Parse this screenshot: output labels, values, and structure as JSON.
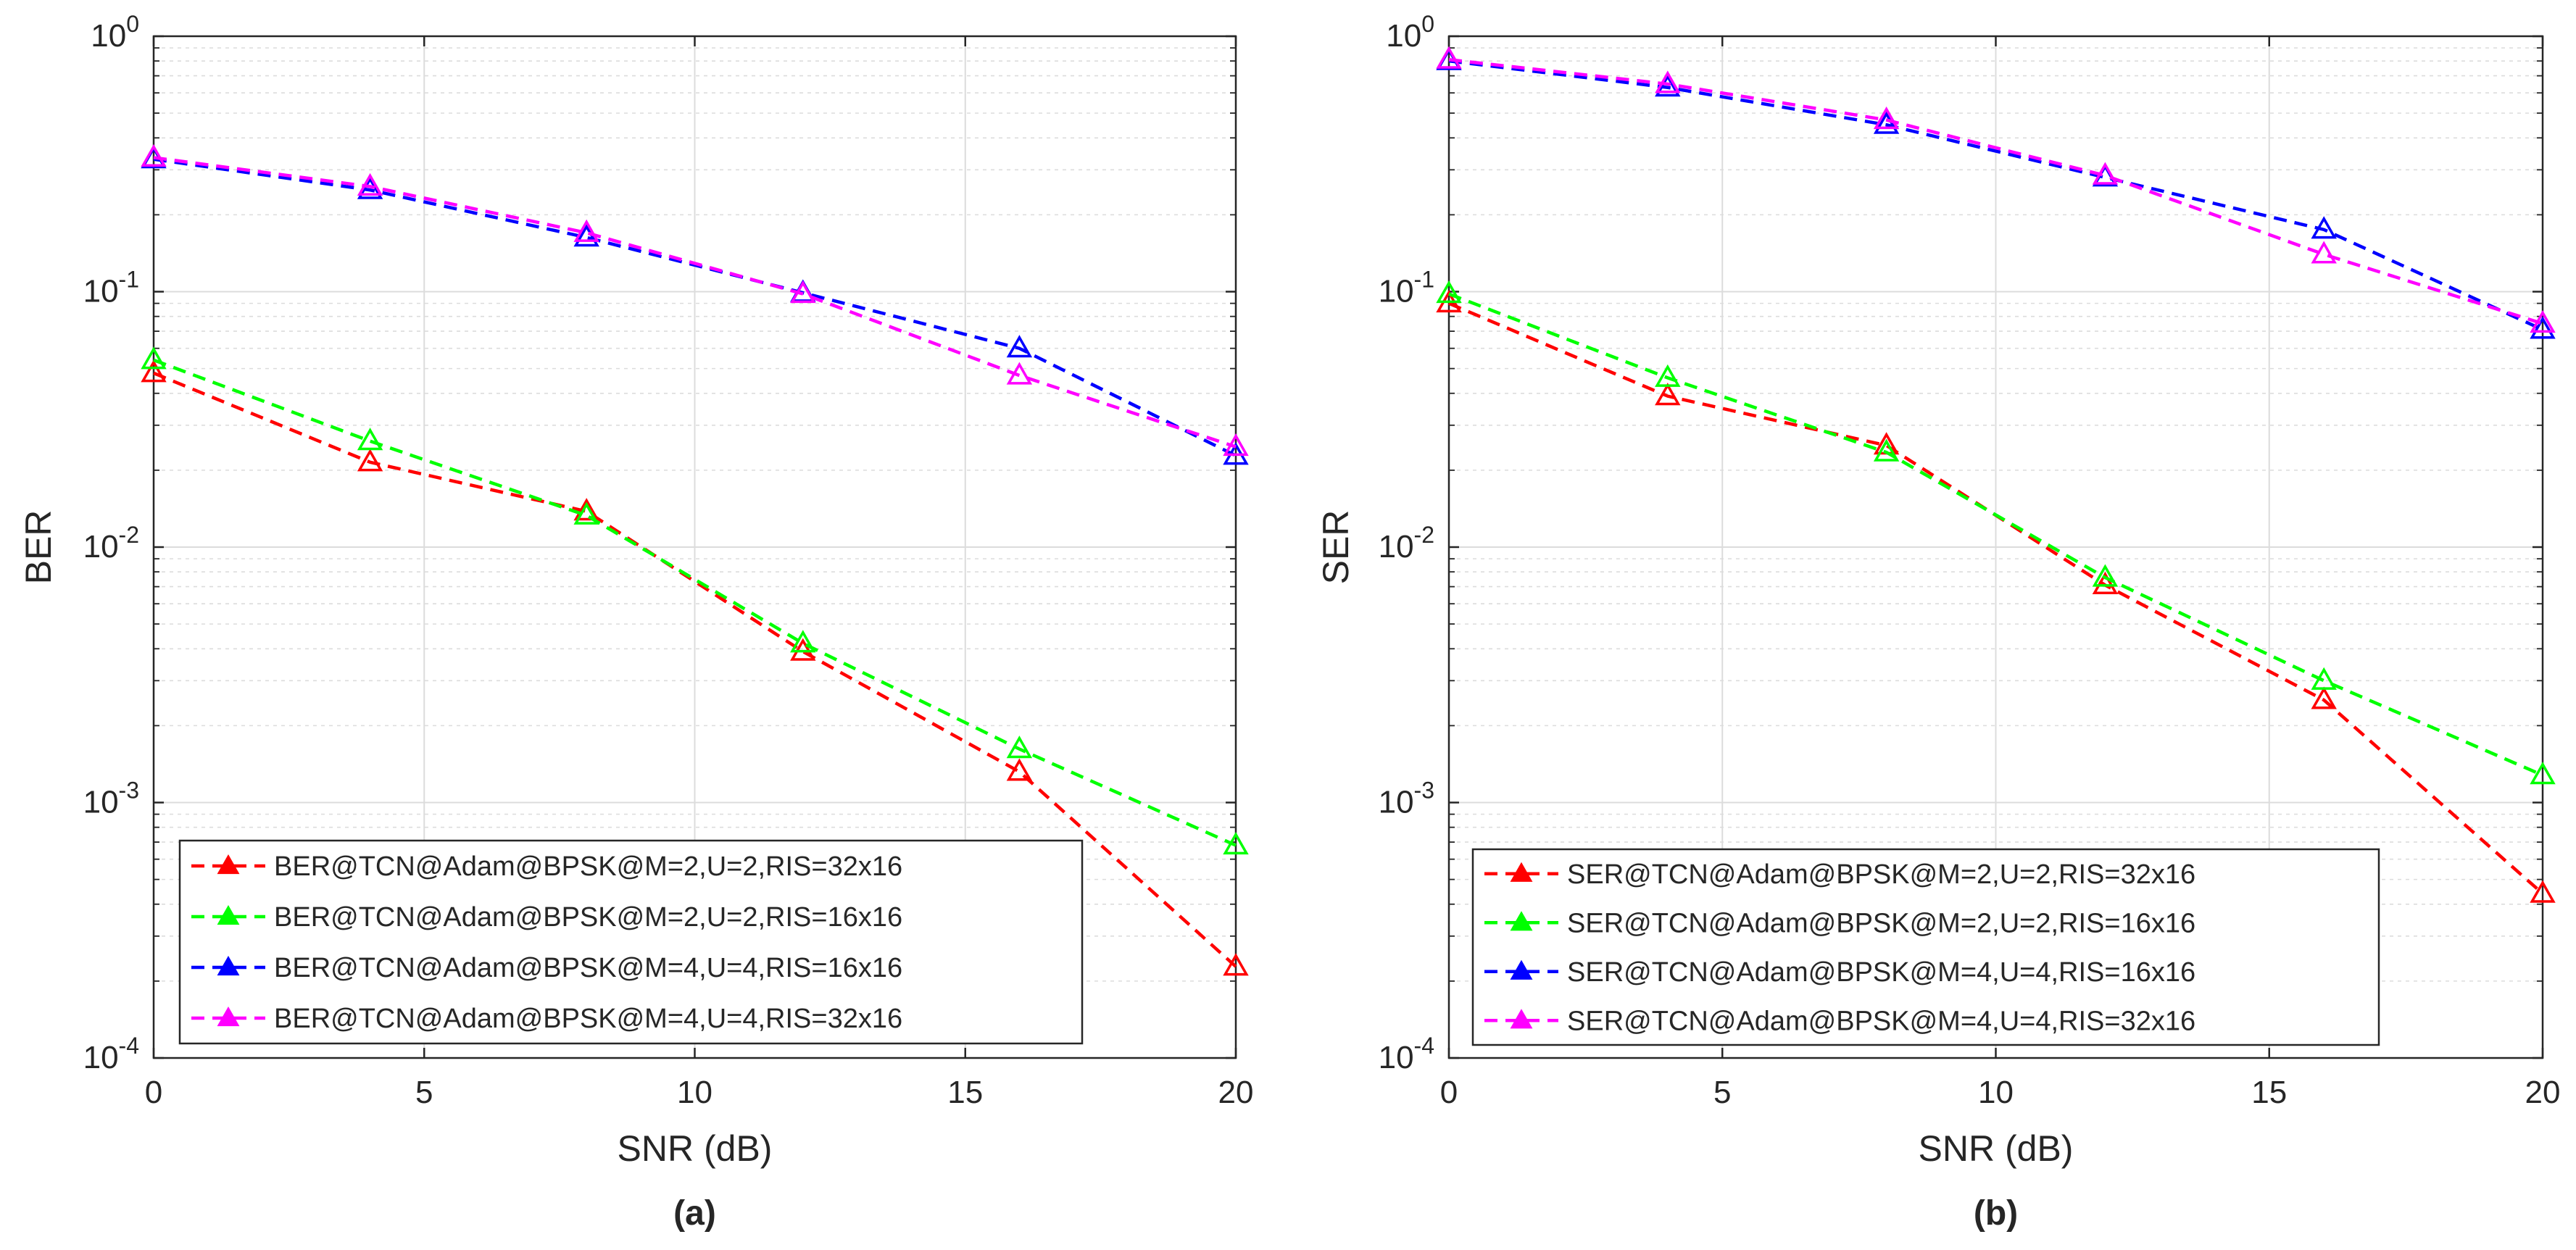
{
  "chart_data": [
    {
      "type": "line",
      "panel_label": "(a)",
      "title": "",
      "xlabel": "SNR (dB)",
      "ylabel": "BER",
      "yscale": "log",
      "xlim": [
        0,
        20
      ],
      "ylim": [
        0.0001,
        1
      ],
      "x_ticks": [
        "0",
        "5",
        "10",
        "15",
        "20"
      ],
      "y_ticks": [
        {
          "base": "10",
          "exp": "-4"
        },
        {
          "base": "10",
          "exp": "-3"
        },
        {
          "base": "10",
          "exp": "-2"
        },
        {
          "base": "10",
          "exp": "-1"
        },
        {
          "base": "10",
          "exp": "0"
        }
      ],
      "grid": true,
      "legend_position": "bottom-left",
      "x": [
        0,
        4,
        8,
        12,
        16,
        20
      ],
      "series": [
        {
          "name": "BER@TCN@Adam@BPSK@M=2,U=2,RIS=32x16",
          "color": "#ff0000",
          "values": [
            0.048,
            0.0215,
            0.0138,
            0.0039,
            0.00132,
            0.000228
          ]
        },
        {
          "name": "BER@TCN@Adam@BPSK@M=2,U=2,RIS=16x16",
          "color": "#00ff00",
          "values": [
            0.054,
            0.026,
            0.0133,
            0.0042,
            0.00162,
            0.00068
          ]
        },
        {
          "name": "BER@TCN@Adam@BPSK@M=4,U=4,RIS=16x16",
          "color": "#0000ff",
          "values": [
            0.33,
            0.25,
            0.163,
            0.099,
            0.06,
            0.0228
          ]
        },
        {
          "name": "BER@TCN@Adam@BPSK@M=4,U=4,RIS=32x16",
          "color": "#ff00ff",
          "values": [
            0.335,
            0.258,
            0.17,
            0.098,
            0.047,
            0.0247
          ]
        }
      ]
    },
    {
      "type": "line",
      "panel_label": "(b)",
      "title": "",
      "xlabel": "SNR (dB)",
      "ylabel": "SER",
      "yscale": "log",
      "xlim": [
        0,
        20
      ],
      "ylim": [
        0.0001,
        1
      ],
      "x_ticks": [
        "0",
        "5",
        "10",
        "15",
        "20"
      ],
      "y_ticks": [
        {
          "base": "10",
          "exp": "-4"
        },
        {
          "base": "10",
          "exp": "-3"
        },
        {
          "base": "10",
          "exp": "-2"
        },
        {
          "base": "10",
          "exp": "-1"
        },
        {
          "base": "10",
          "exp": "0"
        }
      ],
      "grid": true,
      "legend_position": "bottom-left",
      "x": [
        0,
        4,
        8,
        12,
        16,
        20
      ],
      "series": [
        {
          "name": "SER@TCN@Adam@BPSK@M=2,U=2,RIS=32x16",
          "color": "#ff0000",
          "values": [
            0.09,
            0.039,
            0.025,
            0.0071,
            0.00252,
            0.00044
          ]
        },
        {
          "name": "SER@TCN@Adam@BPSK@M=2,U=2,RIS=16x16",
          "color": "#00ff00",
          "values": [
            0.098,
            0.046,
            0.0235,
            0.0076,
            0.003,
            0.00128
          ]
        },
        {
          "name": "SER@TCN@Adam@BPSK@M=4,U=4,RIS=16x16",
          "color": "#0000ff",
          "values": [
            0.8,
            0.63,
            0.45,
            0.28,
            0.175,
            0.071
          ]
        },
        {
          "name": "SER@TCN@Adam@BPSK@M=4,U=4,RIS=32x16",
          "color": "#ff00ff",
          "values": [
            0.81,
            0.65,
            0.47,
            0.285,
            0.14,
            0.075
          ]
        }
      ]
    }
  ]
}
